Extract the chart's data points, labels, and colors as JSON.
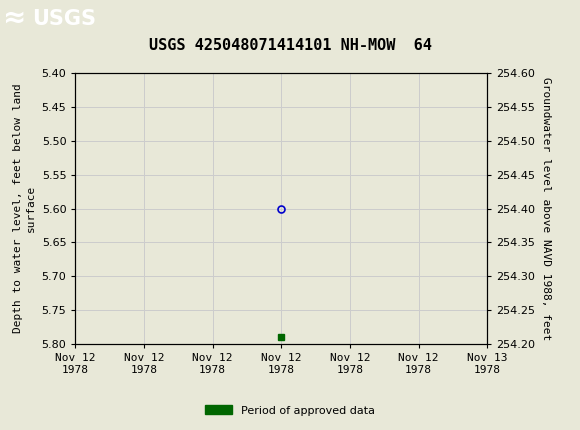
{
  "title": "USGS 425048071414101 NH-MOW  64",
  "left_ylabel": "Depth to water level, feet below land\nsurface",
  "right_ylabel": "Groundwater level above NAVD 1988, feet",
  "ylim_left": [
    5.4,
    5.8
  ],
  "ylim_right": [
    254.2,
    254.6
  ],
  "yticks_left": [
    5.4,
    5.45,
    5.5,
    5.55,
    5.6,
    5.65,
    5.7,
    5.75,
    5.8
  ],
  "yticks_right": [
    254.2,
    254.25,
    254.3,
    254.35,
    254.4,
    254.45,
    254.5,
    254.55,
    254.6
  ],
  "xlim": [
    0,
    6
  ],
  "xtick_labels": [
    "Nov 12\n1978",
    "Nov 12\n1978",
    "Nov 12\n1978",
    "Nov 12\n1978",
    "Nov 12\n1978",
    "Nov 12\n1978",
    "Nov 13\n1978"
  ],
  "xtick_positions": [
    0,
    1,
    2,
    3,
    4,
    5,
    6
  ],
  "data_point_x": 3.0,
  "data_point_y": 5.6,
  "data_point_color": "#0000cc",
  "green_square_x": 3.0,
  "green_square_y": 5.79,
  "green_square_color": "#006600",
  "grid_color": "#cccccc",
  "plot_bg_color": "#e8e8d8",
  "fig_bg_color": "#e8e8d8",
  "header_bg_color": "#1a6b3c",
  "legend_label": "Period of approved data",
  "legend_color": "#006600",
  "title_fontsize": 11,
  "axis_label_fontsize": 8,
  "tick_fontsize": 8
}
